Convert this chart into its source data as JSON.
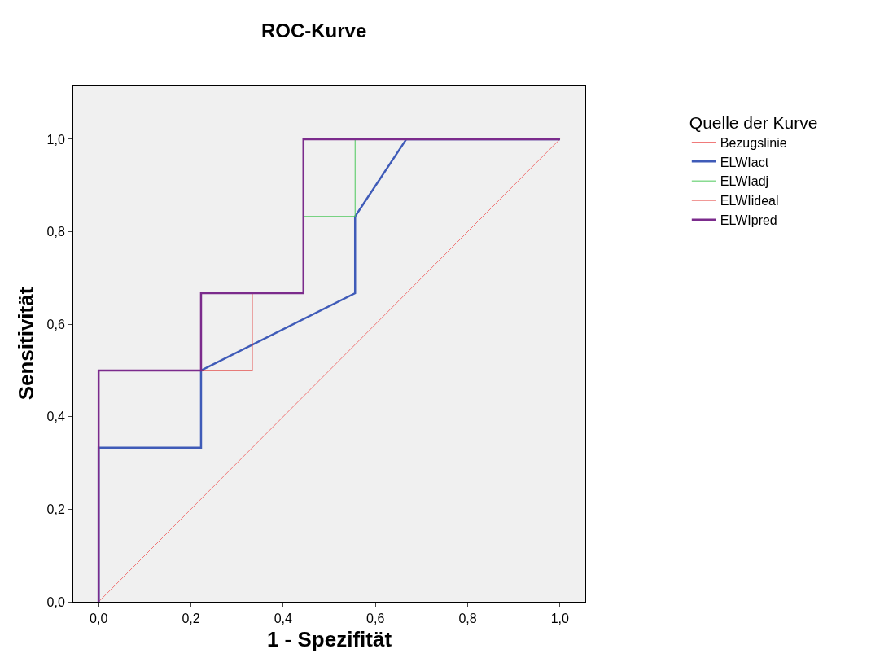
{
  "chart_data": {
    "type": "line",
    "title": "ROC-Kurve",
    "xlabel": "1 - Spezifität",
    "ylabel": "Sensitivität",
    "legend_title": "Quelle der Kurve",
    "series": [
      {
        "name": "Bezugslinie",
        "color": "#f07474",
        "x": [
          0,
          1
        ],
        "values": [
          0,
          1
        ]
      },
      {
        "name": "ELWIact",
        "color": "#3f5bb8",
        "x": [
          0,
          0,
          0.222,
          0.222,
          0.556,
          0.556,
          0.667,
          1
        ],
        "values": [
          0,
          0.333,
          0.333,
          0.5,
          0.667,
          0.833,
          1,
          1
        ]
      },
      {
        "name": "ELWIadj",
        "color": "#4cc85a",
        "x": [
          0.444,
          0.556,
          0.556
        ],
        "values": [
          0.833,
          0.833,
          1
        ]
      },
      {
        "name": "ELWIideal",
        "color": "#e0201c",
        "x": [
          0.222,
          0.333,
          0.333
        ],
        "values": [
          0.5,
          0.5,
          0.667
        ]
      },
      {
        "name": "ELWIpred",
        "color": "#7b2b8c",
        "x": [
          0,
          0,
          0.222,
          0.222,
          0.444,
          0.444,
          1
        ],
        "values": [
          0,
          0.5,
          0.5,
          0.667,
          0.667,
          1,
          1
        ]
      }
    ],
    "xlim": [
      -0.055,
      1.055
    ],
    "ylim": [
      0,
      1.116
    ],
    "xticks": [
      {
        "value": 0,
        "label": "0,0"
      },
      {
        "value": 0.2,
        "label": "0,2"
      },
      {
        "value": 0.4,
        "label": "0,4"
      },
      {
        "value": 0.6,
        "label": "0,6"
      },
      {
        "value": 0.8,
        "label": "0,8"
      },
      {
        "value": 1,
        "label": "1,0"
      }
    ],
    "yticks": [
      {
        "value": 0,
        "label": "0,0"
      },
      {
        "value": 0.2,
        "label": "0,2"
      },
      {
        "value": 0.4,
        "label": "0,4"
      },
      {
        "value": 0.6,
        "label": "0,6"
      },
      {
        "value": 0.8,
        "label": "0,8"
      },
      {
        "value": 1,
        "label": "1,0"
      }
    ],
    "grid": false,
    "legend": "top right",
    "marker": "none",
    "line_style": "solid"
  }
}
